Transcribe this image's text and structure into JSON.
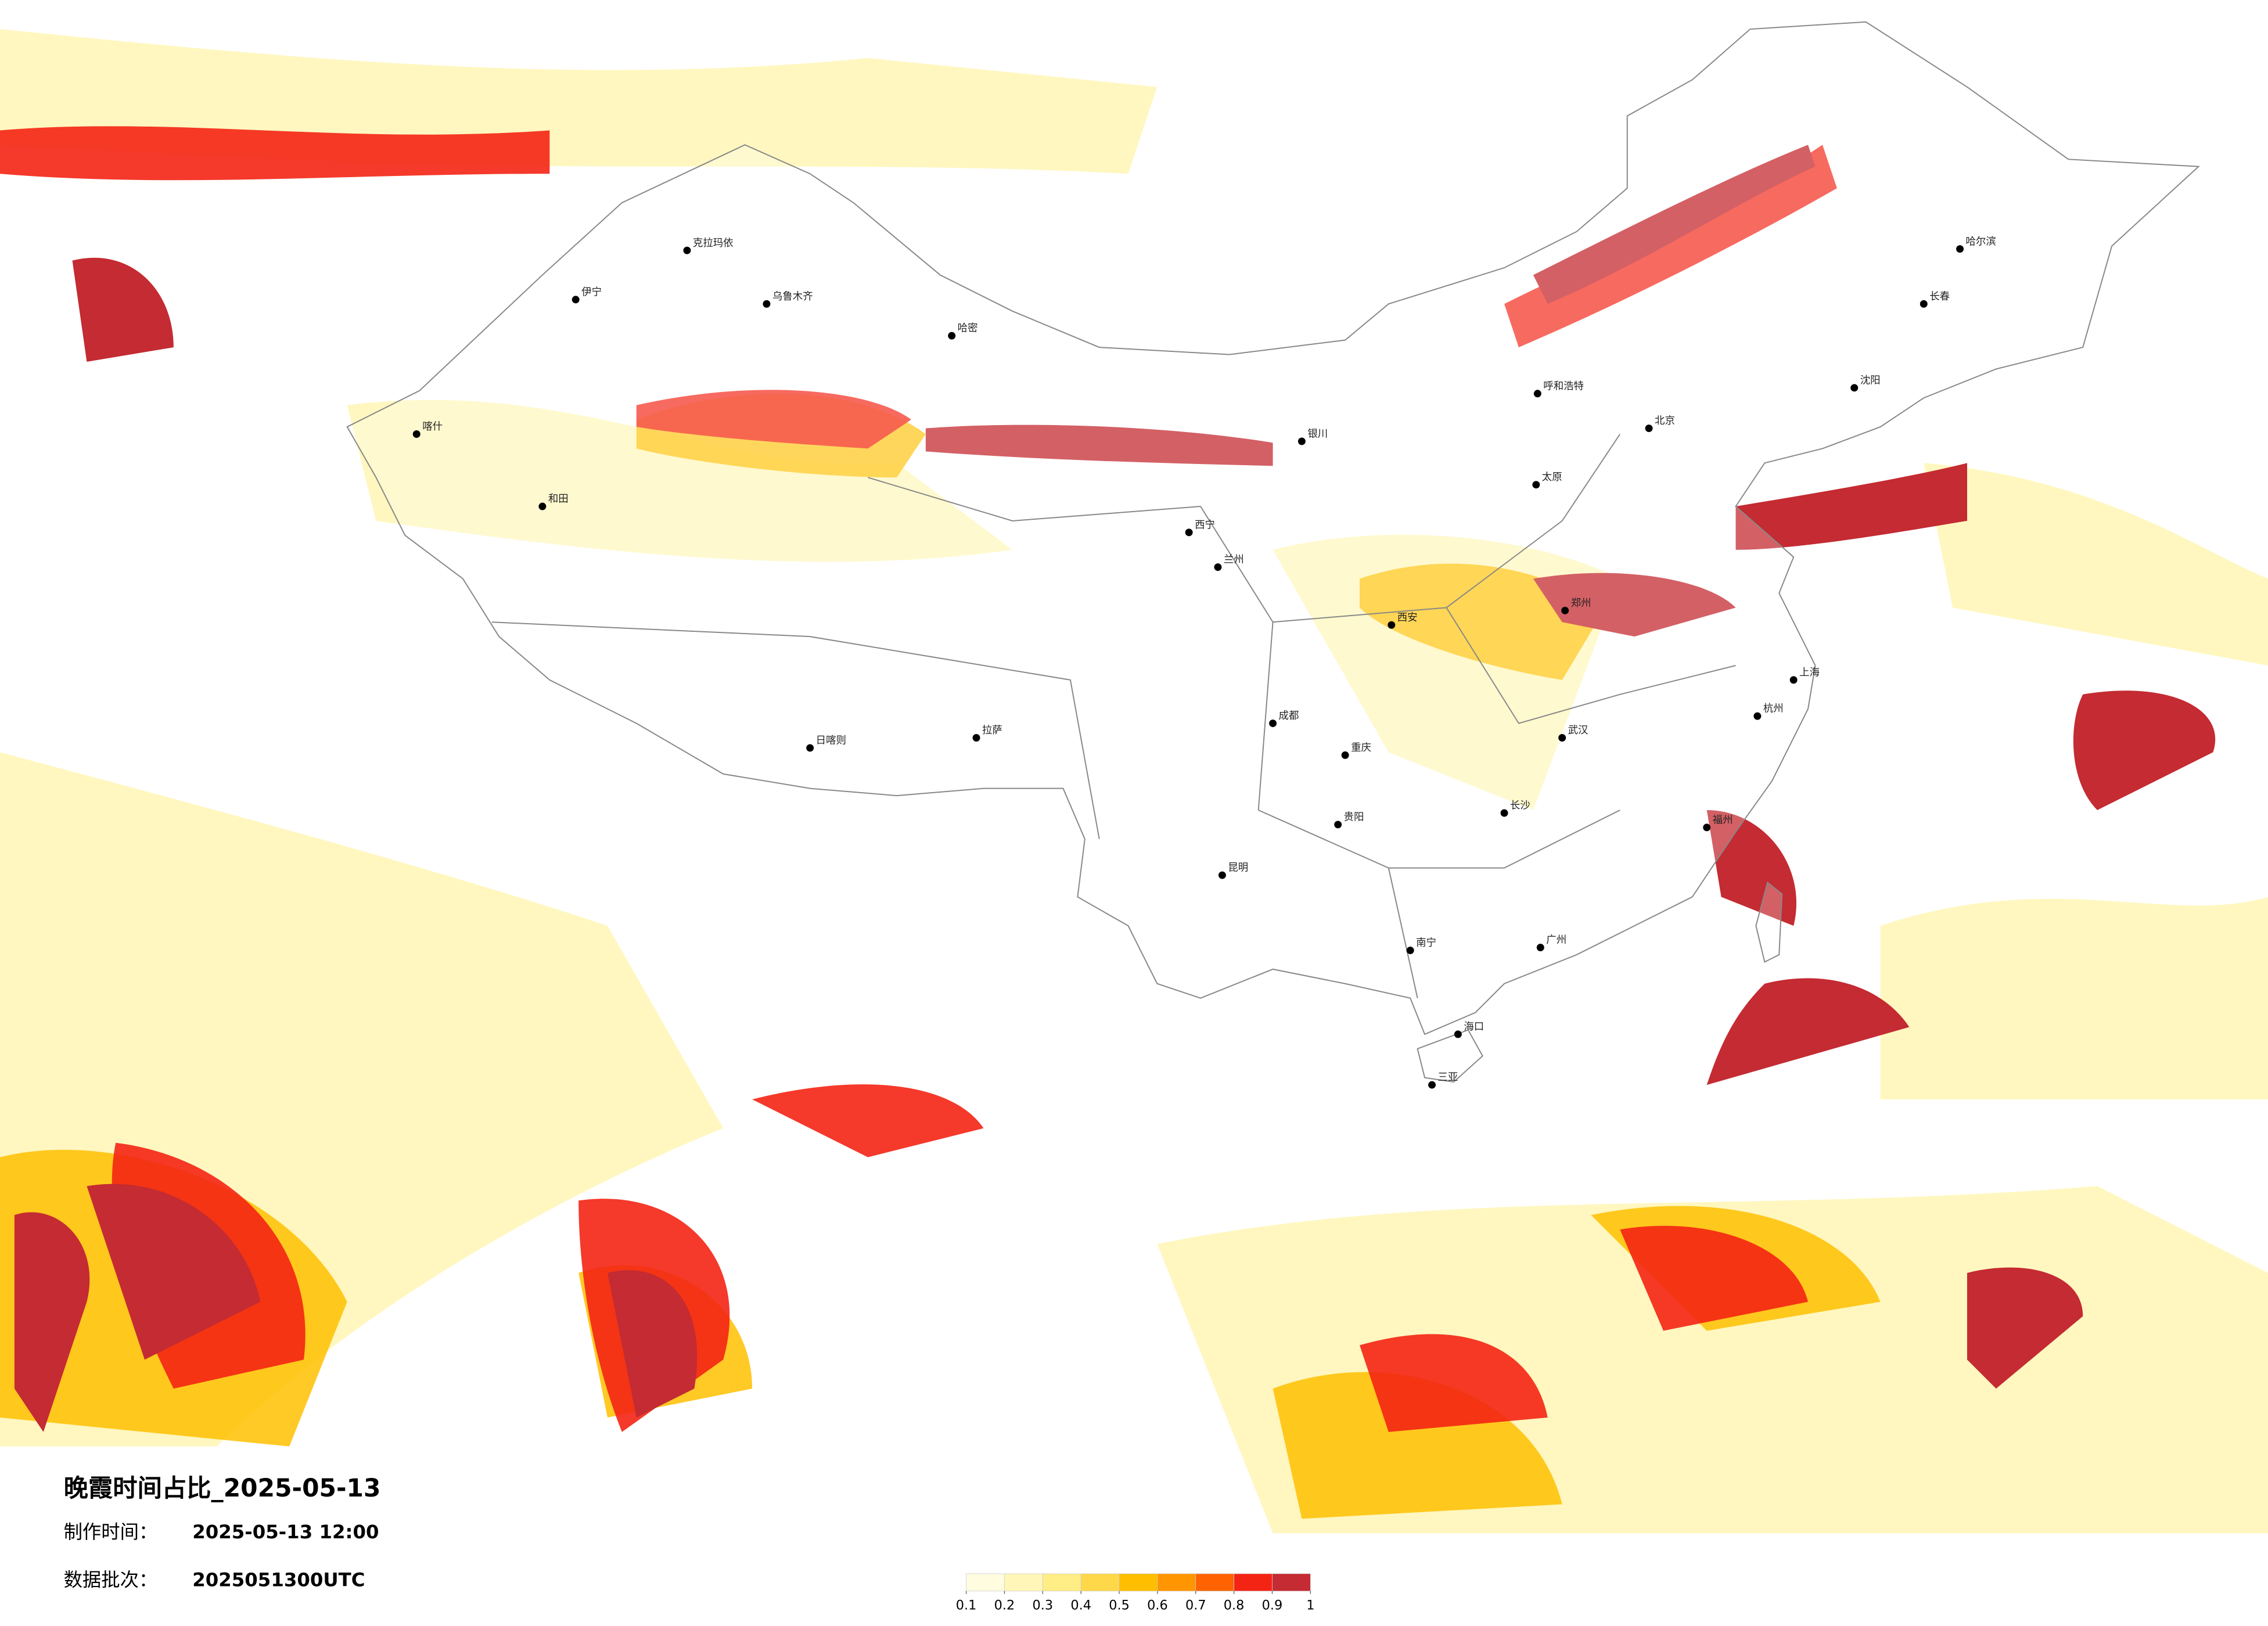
{
  "title": "晚霞时间占比_2025-05-13",
  "made_label": "制作时间：",
  "made_value": "2025-05-13 12:00",
  "batch_label": "数据批次：",
  "batch_value": "2025051300UTC",
  "legend": {
    "ticks": [
      0.1,
      0.2,
      0.3,
      0.4,
      0.5,
      0.6,
      0.7,
      0.8,
      0.9,
      1
    ],
    "colors": [
      "#fffce0",
      "#fff6b8",
      "#ffed86",
      "#ffd84a",
      "#ffbf00",
      "#ff9500",
      "#ff6200",
      "#f42414",
      "#c42b32"
    ]
  },
  "cities": [
    "克拉玛依",
    "乌鲁木齐",
    "伊宁",
    "和田",
    "喀什",
    "哈密",
    "日喀则",
    "拉萨",
    "西宁",
    "兰州",
    "银川",
    "呼和浩特",
    "北京",
    "太原",
    "郑州",
    "西安",
    "成都",
    "重庆",
    "昆明",
    "贵阳",
    "南宁",
    "广州",
    "武汉",
    "长沙",
    "上海",
    "杭州",
    "福州",
    "哈尔滨",
    "长春",
    "沈阳",
    "海口",
    "三亚"
  ]
}
